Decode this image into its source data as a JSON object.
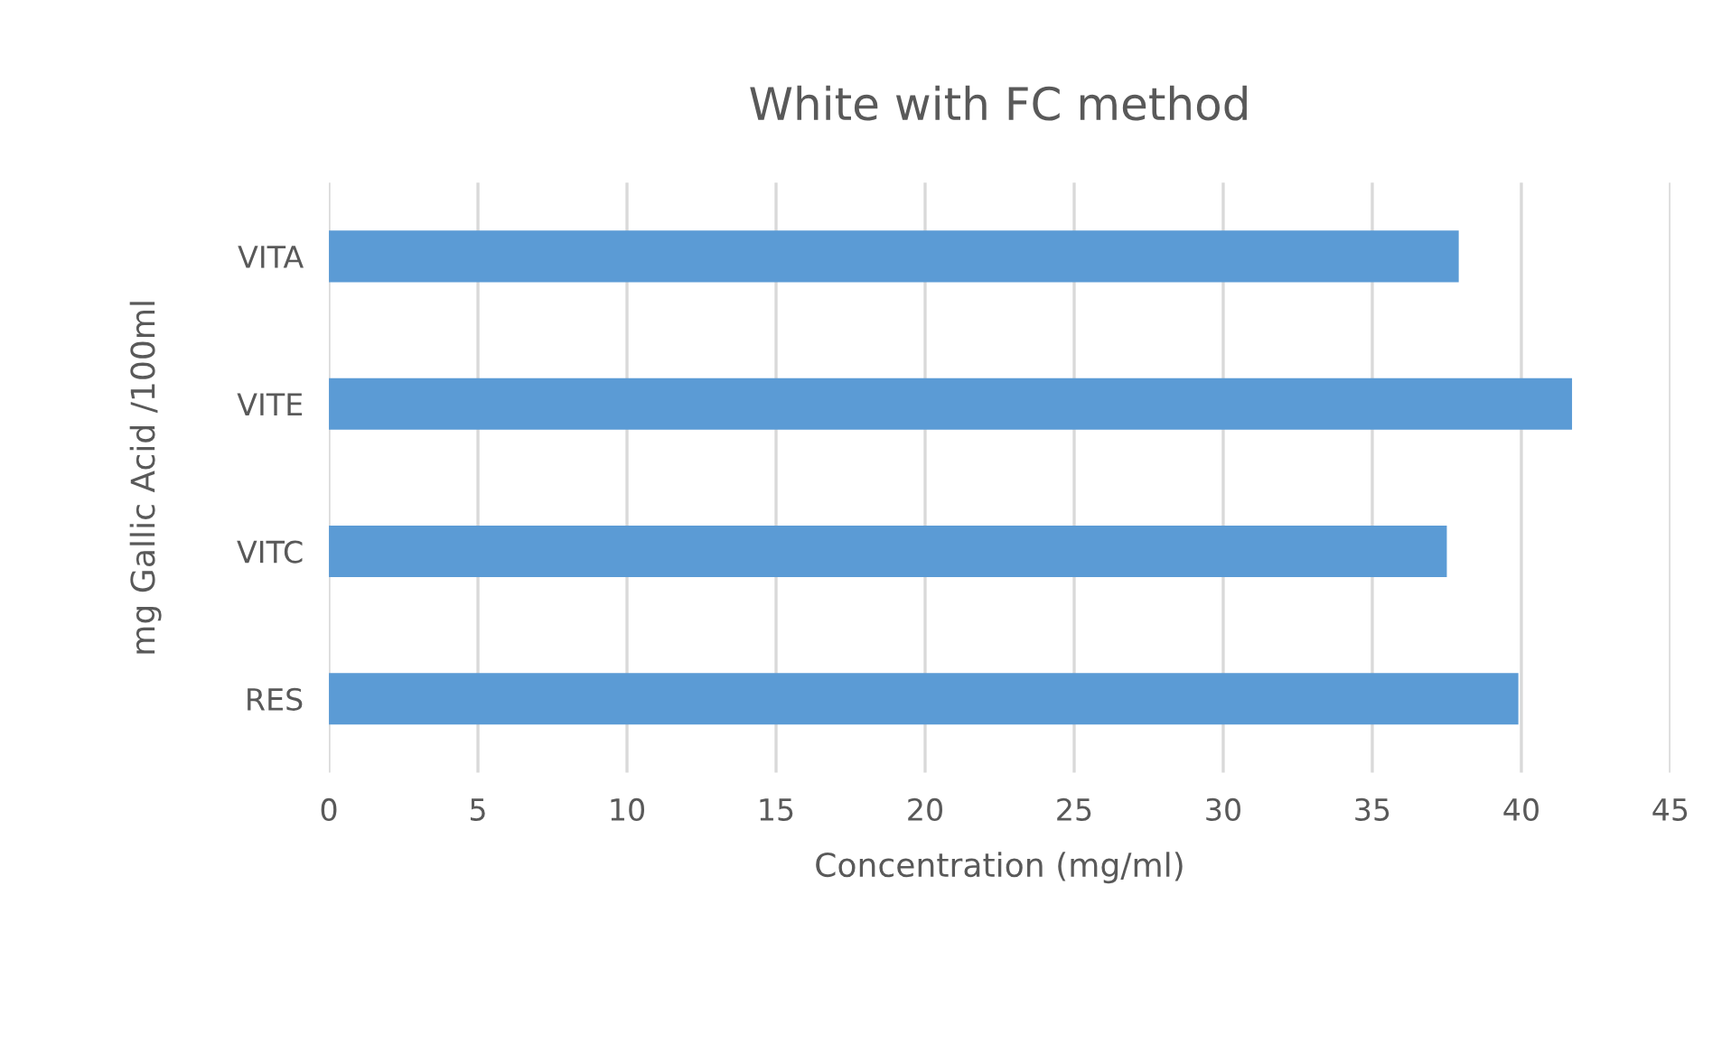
{
  "chart_data": {
    "type": "bar",
    "orientation": "horizontal",
    "title": "White with FC method",
    "xlabel": "Concentration (mg/ml)",
    "ylabel": "mg Gallic Acid /100ml",
    "categories": [
      "VITA",
      "VITE",
      "VITC",
      "RES"
    ],
    "values": [
      37.9,
      41.7,
      37.5,
      39.9
    ],
    "color": "#5b9bd5",
    "xlim": [
      0,
      45
    ],
    "xticks": [
      0,
      5,
      10,
      15,
      20,
      25,
      30,
      35,
      40,
      45
    ],
    "grid": "x"
  }
}
